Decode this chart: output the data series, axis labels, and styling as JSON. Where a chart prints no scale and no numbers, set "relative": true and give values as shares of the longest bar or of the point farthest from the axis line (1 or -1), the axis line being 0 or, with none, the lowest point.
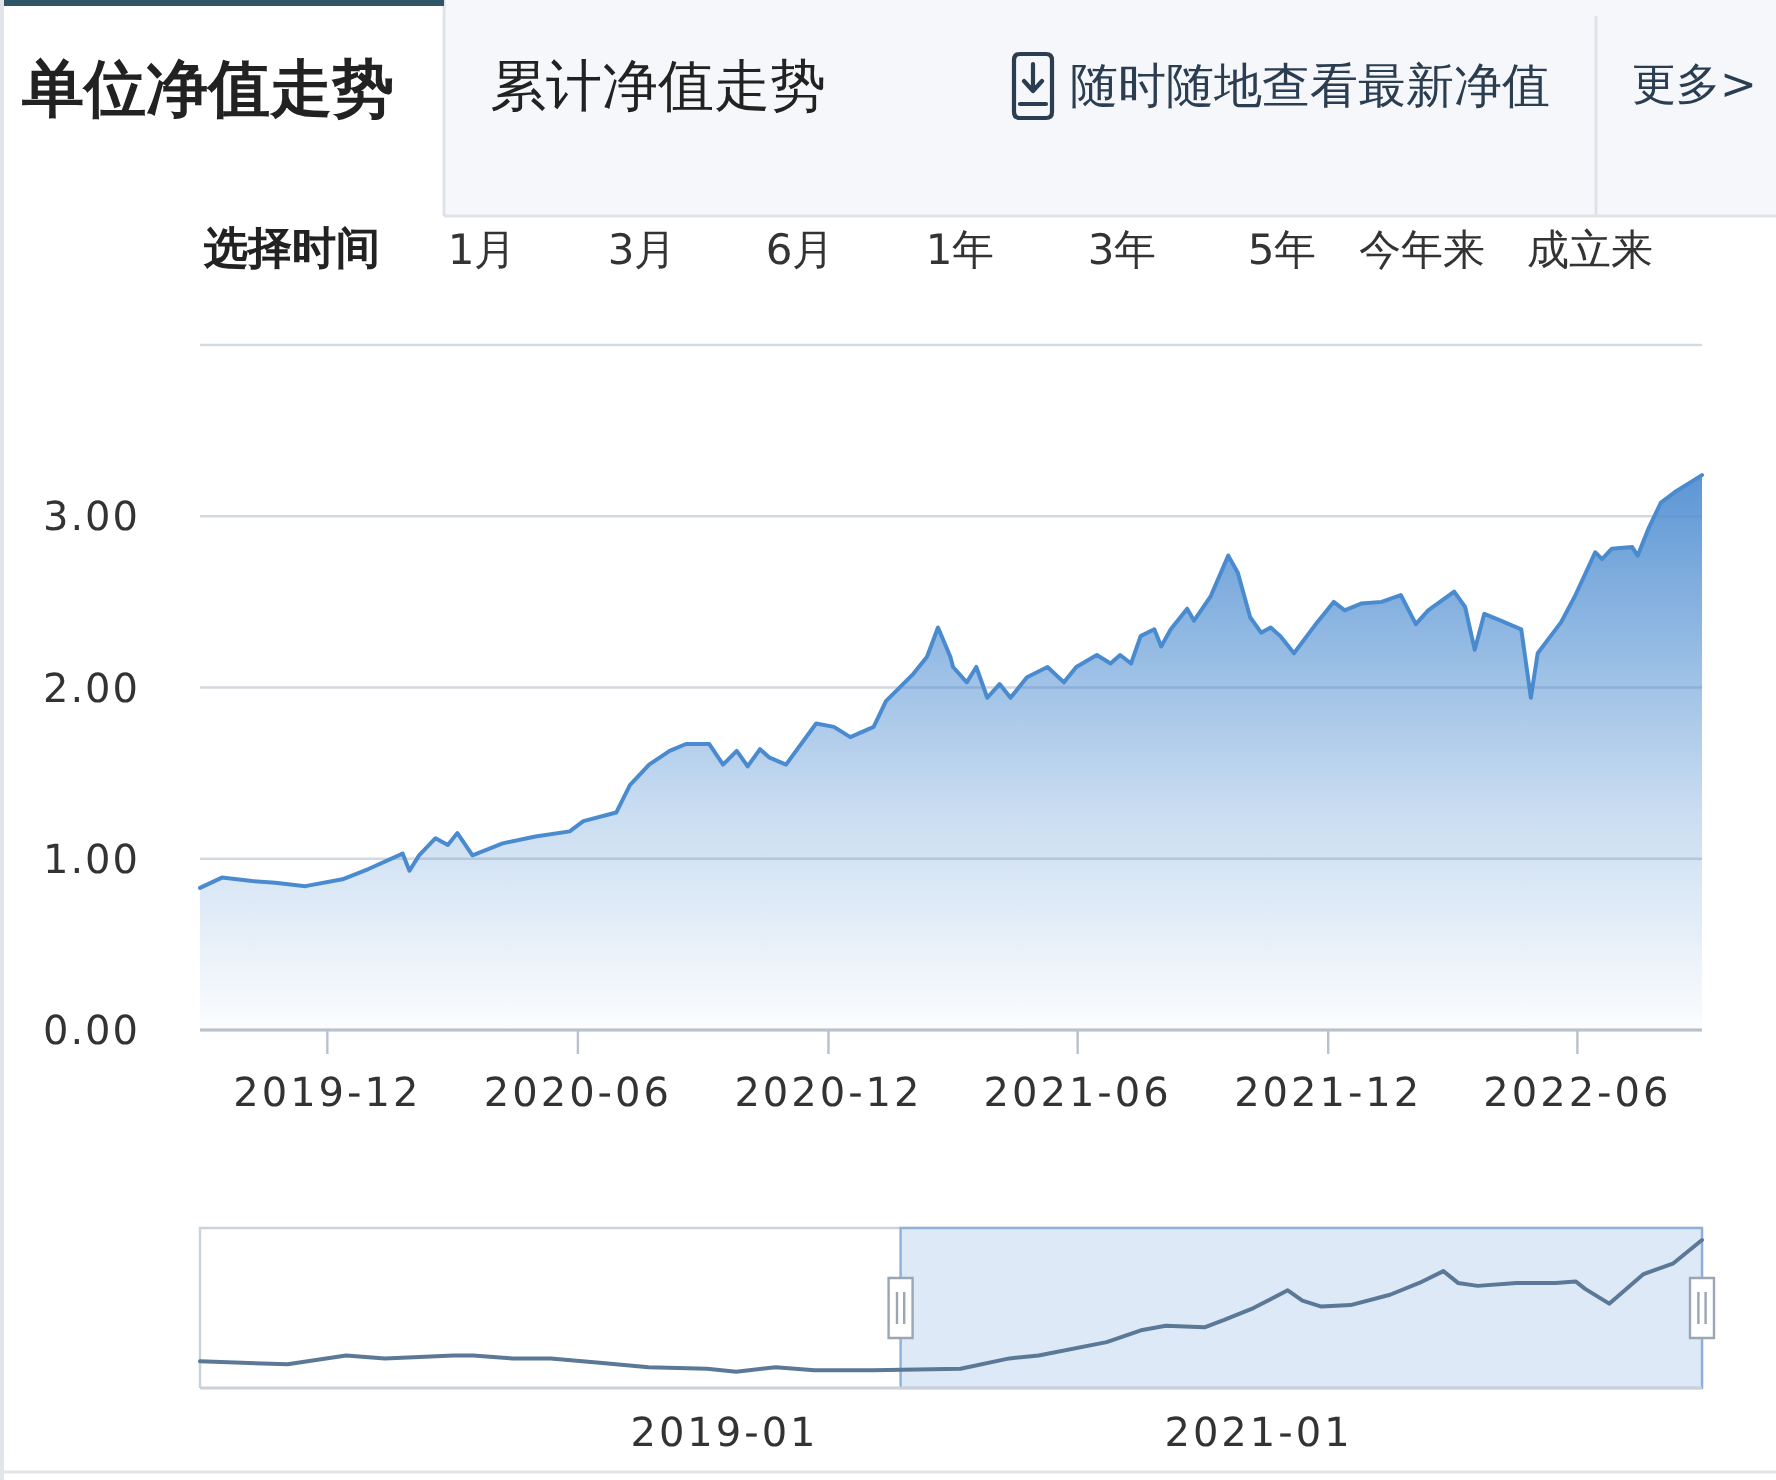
{
  "chart_data": [
    {
      "type": "area",
      "title": "单位净值走势",
      "annotations": [
        "累计净值走势",
        "随时随地查看最新净值",
        "更多>",
        "选择时间",
        "1月",
        "3月",
        "6月",
        "1年",
        "3年",
        "5年",
        "今年来",
        "成立来"
      ],
      "x": [
        "2019-08-30",
        "2019-09-15",
        "2019-10-07",
        "2019-10-24",
        "2019-11-15",
        "2019-12-12",
        "2019-12-31",
        "2020-01-25",
        "2020-01-30",
        "2020-02-06",
        "2020-02-18",
        "2020-02-27",
        "2020-03-05",
        "2020-03-16",
        "2020-04-07",
        "2020-05-01",
        "2020-05-26",
        "2020-06-05",
        "2020-06-29",
        "2020-07-09",
        "2020-07-23",
        "2020-08-07",
        "2020-08-19",
        "2020-09-05",
        "2020-09-15",
        "2020-09-25",
        "2020-10-03",
        "2020-10-12",
        "2020-10-19",
        "2020-10-31",
        "2020-11-22",
        "2020-12-05",
        "2020-12-17",
        "2021-01-03",
        "2021-01-12",
        "2021-02-01",
        "2021-02-11",
        "2021-02-19",
        "2021-02-28",
        "2021-03-02",
        "2021-03-12",
        "2021-03-19",
        "2021-03-27",
        "2021-04-05",
        "2021-04-13",
        "2021-04-25",
        "2021-05-10",
        "2021-05-22",
        "2021-05-31",
        "2021-06-15",
        "2021-06-25",
        "2021-07-02",
        "2021-07-10",
        "2021-07-17",
        "2021-07-27",
        "2021-08-01",
        "2021-08-08",
        "2021-08-20",
        "2021-08-25",
        "2021-09-06",
        "2021-09-19",
        "2021-09-26",
        "2021-10-05",
        "2021-10-13",
        "2021-10-20",
        "2021-10-27",
        "2021-11-06",
        "2021-11-21",
        "2021-12-05",
        "2021-12-13",
        "2021-12-25",
        "2022-01-09",
        "2022-01-23",
        "2022-02-03",
        "2022-02-12",
        "2022-03-03",
        "2022-03-11",
        "2022-03-18",
        "2022-03-25",
        "2022-04-06",
        "2022-04-21",
        "2022-04-28",
        "2022-05-03",
        "2022-05-20",
        "2022-05-30",
        "2022-06-14",
        "2022-06-19",
        "2022-06-26",
        "2022-07-11",
        "2022-07-15",
        "2022-07-23",
        "2022-08-01",
        "2022-08-11",
        "2022-08-31"
      ],
      "values": [
        0.83,
        0.89,
        0.87,
        0.86,
        0.84,
        0.88,
        0.94,
        1.03,
        0.93,
        1.02,
        1.12,
        1.08,
        1.15,
        1.02,
        1.09,
        1.13,
        1.16,
        1.22,
        1.27,
        1.43,
        1.55,
        1.63,
        1.67,
        1.67,
        1.55,
        1.63,
        1.54,
        1.64,
        1.59,
        1.55,
        1.79,
        1.77,
        1.71,
        1.77,
        1.92,
        2.08,
        2.18,
        2.35,
        2.18,
        2.12,
        2.03,
        2.12,
        1.94,
        2.02,
        1.94,
        2.06,
        2.12,
        2.03,
        2.12,
        2.19,
        2.14,
        2.19,
        2.14,
        2.3,
        2.34,
        2.24,
        2.34,
        2.46,
        2.39,
        2.53,
        2.77,
        2.67,
        2.41,
        2.32,
        2.35,
        2.3,
        2.2,
        2.36,
        2.5,
        2.45,
        2.49,
        2.5,
        2.54,
        2.37,
        2.45,
        2.56,
        2.47,
        2.22,
        2.43,
        2.39,
        2.34,
        1.94,
        2.2,
        2.38,
        2.53,
        2.79,
        2.75,
        2.81,
        2.82,
        2.77,
        2.93,
        3.08,
        3.14,
        3.24
      ],
      "color": "#4a8bd0",
      "xlim": [
        "2019-08-30",
        "2022-08-31"
      ],
      "xticks": [
        "2019-12",
        "2020-06",
        "2020-12",
        "2021-06",
        "2021-12",
        "2022-06"
      ],
      "ylim": [
        0,
        4
      ],
      "yticks": [
        {
          "value": 0,
          "label": "0.00"
        },
        {
          "value": 1,
          "label": "1.00"
        },
        {
          "value": 2,
          "label": "2.00"
        },
        {
          "value": 3,
          "label": "3.00"
        },
        {
          "value": 4,
          "label": null
        }
      ],
      "grid": "y"
    },
    {
      "type": "line",
      "relative": true,
      "x": [
        "2017-01-13",
        "2017-05-13",
        "2017-08-01",
        "2017-09-23",
        "2017-12-26",
        "2018-01-22",
        "2018-03-16",
        "2018-05-08",
        "2018-07-14",
        "2018-09-19",
        "2018-12-08",
        "2019-01-17",
        "2019-03-12",
        "2019-05-04",
        "2019-07-23",
        "2019-11-20",
        "2020-01-26",
        "2020-03-06",
        "2020-06-07",
        "2020-07-24",
        "2020-08-27",
        "2020-10-19",
        "2020-11-15",
        "2020-12-25",
        "2021-02-10",
        "2021-03-02",
        "2021-03-28",
        "2021-05-07",
        "2021-06-30",
        "2021-08-09",
        "2021-09-11",
        "2021-10-01",
        "2021-10-28",
        "2021-12-20",
        "2022-02-12",
        "2022-03-11",
        "2022-03-24",
        "2022-04-26",
        "2022-06-12",
        "2022-07-22",
        "2022-08-31"
      ],
      "values": [
        0.18,
        0.16,
        0.22,
        0.2,
        0.22,
        0.22,
        0.2,
        0.2,
        0.17,
        0.14,
        0.13,
        0.11,
        0.14,
        0.12,
        0.12,
        0.13,
        0.2,
        0.22,
        0.31,
        0.39,
        0.42,
        0.41,
        0.46,
        0.54,
        0.66,
        0.59,
        0.55,
        0.56,
        0.63,
        0.71,
        0.79,
        0.71,
        0.69,
        0.71,
        0.71,
        0.72,
        0.67,
        0.57,
        0.77,
        0.84,
        1.0
      ],
      "color": "#5b7896",
      "xlim": [
        "2017-01-13",
        "2022-08-31"
      ],
      "xticks": [
        "2019-01",
        "2021-01"
      ],
      "bands": [
        {
          "axis": "x",
          "from": "2019-08-30",
          "to": "2022-08-31",
          "color": "#d3e2f5"
        }
      ]
    }
  ]
}
